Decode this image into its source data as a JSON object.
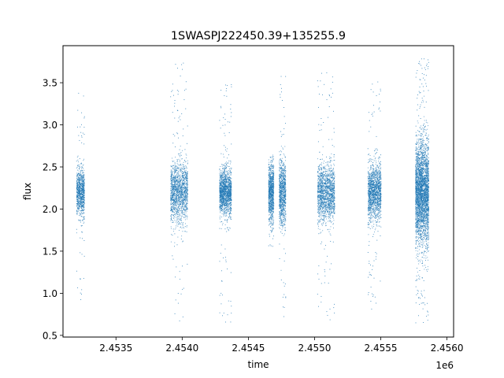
{
  "chart_data": {
    "type": "scatter",
    "title": "1SWASPJ222450.39+135255.9",
    "xlabel": "time",
    "ylabel": "flux",
    "x_offset_label": "1e6",
    "xlim": [
      2.4531,
      2.45605
    ],
    "ylim": [
      0.48,
      3.94
    ],
    "x_ticks": [
      2.4535,
      2.454,
      2.4545,
      2.455,
      2.4555,
      2.456
    ],
    "x_tick_labels": [
      "2.4535",
      "2.4540",
      "2.4545",
      "2.4550",
      "2.4555",
      "2.4560"
    ],
    "y_ticks": [
      0.5,
      1.0,
      1.5,
      2.0,
      2.5,
      3.0,
      3.5
    ],
    "y_tick_labels": [
      "0.5",
      "1.0",
      "1.5",
      "2.0",
      "2.5",
      "3.0",
      "3.5"
    ],
    "grid": false,
    "marker_color": "#1f77b4",
    "series": [
      {
        "clusters": [
          {
            "x_range": [
              2.4532,
              2.45326
            ],
            "y_center": 2.2,
            "y_spread": 0.25,
            "y_min": 0.92,
            "y_max": 3.38,
            "density": "medium"
          },
          {
            "x_range": [
              2.45391,
              2.45404
            ],
            "y_center": 2.2,
            "y_spread": 0.32,
            "y_min": 0.66,
            "y_max": 3.74,
            "density": "high"
          },
          {
            "x_range": [
              2.45428,
              2.45437
            ],
            "y_center": 2.2,
            "y_spread": 0.25,
            "y_min": 0.66,
            "y_max": 3.52,
            "density": "high"
          },
          {
            "x_range": [
              2.45465,
              2.45469
            ],
            "y_center": 2.2,
            "y_spread": 0.3,
            "y_min": 1.55,
            "y_max": 2.65,
            "density": "medium"
          },
          {
            "x_range": [
              2.45473,
              2.45478
            ],
            "y_center": 2.2,
            "y_spread": 0.35,
            "y_min": 0.7,
            "y_max": 3.6,
            "density": "medium"
          },
          {
            "x_range": [
              2.45502,
              2.45515
            ],
            "y_center": 2.2,
            "y_spread": 0.3,
            "y_min": 0.68,
            "y_max": 3.63,
            "density": "high"
          },
          {
            "x_range": [
              2.4554,
              2.4555
            ],
            "y_center": 2.2,
            "y_spread": 0.3,
            "y_min": 0.78,
            "y_max": 3.63,
            "density": "high"
          },
          {
            "x_range": [
              2.45576,
              2.45586
            ],
            "y_center": 2.2,
            "y_spread": 0.55,
            "y_min": 0.64,
            "y_max": 3.82,
            "density": "very-high"
          }
        ]
      }
    ]
  }
}
